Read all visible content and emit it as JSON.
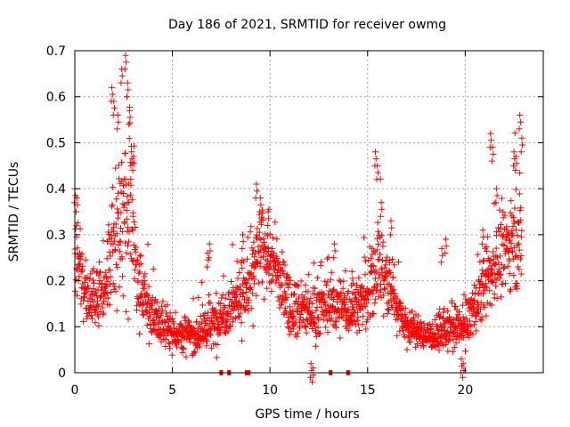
{
  "chart_data": {
    "type": "scatter",
    "title": "Day 186 of 2021, SRMTID for receiver owmg",
    "xlabel": "GPS time / hours",
    "ylabel": "SRMTID / TECUs",
    "xlim": [
      0,
      24
    ],
    "ylim": [
      0,
      0.7
    ],
    "x_ticks": [
      0,
      5,
      10,
      15,
      20
    ],
    "y_ticks": [
      0,
      0.1,
      0.2,
      0.3,
      0.4,
      0.5,
      0.6,
      0.7
    ],
    "x_tick_labels": [
      "0",
      "5",
      "10",
      "15",
      "20"
    ],
    "y_tick_labels": [
      "0",
      "0.1",
      "0.2",
      "0.3",
      "0.4",
      "0.5",
      "0.6",
      "0.7"
    ],
    "grid": true,
    "marker": "+",
    "color": "#ff0000",
    "envelope": [
      [
        0.0,
        0.24,
        0.12
      ],
      [
        0.3,
        0.22,
        0.09
      ],
      [
        0.6,
        0.16,
        0.06
      ],
      [
        1.0,
        0.15,
        0.06
      ],
      [
        1.5,
        0.2,
        0.09
      ],
      [
        2.0,
        0.3,
        0.14
      ],
      [
        2.5,
        0.35,
        0.18
      ],
      [
        2.8,
        0.38,
        0.2
      ],
      [
        3.2,
        0.2,
        0.08
      ],
      [
        4.0,
        0.12,
        0.05
      ],
      [
        5.0,
        0.09,
        0.04
      ],
      [
        6.0,
        0.08,
        0.04
      ],
      [
        7.0,
        0.1,
        0.05
      ],
      [
        8.0,
        0.15,
        0.06
      ],
      [
        9.0,
        0.19,
        0.08
      ],
      [
        9.5,
        0.27,
        0.09
      ],
      [
        10.0,
        0.25,
        0.08
      ],
      [
        11.0,
        0.15,
        0.06
      ],
      [
        12.0,
        0.13,
        0.06
      ],
      [
        13.0,
        0.15,
        0.06
      ],
      [
        14.0,
        0.14,
        0.06
      ],
      [
        15.0,
        0.16,
        0.07
      ],
      [
        15.5,
        0.24,
        0.11
      ],
      [
        16.0,
        0.2,
        0.08
      ],
      [
        17.0,
        0.1,
        0.04
      ],
      [
        18.0,
        0.08,
        0.03
      ],
      [
        19.0,
        0.09,
        0.04
      ],
      [
        20.0,
        0.1,
        0.05
      ],
      [
        21.0,
        0.19,
        0.07
      ],
      [
        22.0,
        0.27,
        0.09
      ],
      [
        22.8,
        0.3,
        0.1
      ]
    ],
    "spikes": [
      [
        0.0,
        0.4
      ],
      [
        0.1,
        0.38
      ],
      [
        1.9,
        0.62
      ],
      [
        2.0,
        0.59
      ],
      [
        2.2,
        0.56
      ],
      [
        2.4,
        0.66
      ],
      [
        2.6,
        0.69
      ],
      [
        2.7,
        0.63
      ],
      [
        2.8,
        0.57
      ],
      [
        2.9,
        0.48
      ],
      [
        3.0,
        0.47
      ],
      [
        9.3,
        0.41
      ],
      [
        9.5,
        0.38
      ],
      [
        9.9,
        0.35
      ],
      [
        15.4,
        0.48
      ],
      [
        15.5,
        0.45
      ],
      [
        15.7,
        0.37
      ],
      [
        21.3,
        0.52
      ],
      [
        21.4,
        0.49
      ],
      [
        21.6,
        0.4
      ],
      [
        22.5,
        0.48
      ],
      [
        22.6,
        0.47
      ],
      [
        22.8,
        0.56
      ],
      [
        22.9,
        0.51
      ],
      [
        12.1,
        0.02
      ],
      [
        12.2,
        0.01
      ],
      [
        19.8,
        0.03
      ],
      [
        19.9,
        0.02
      ],
      [
        6.8,
        0.26
      ],
      [
        6.9,
        0.28
      ],
      [
        8.6,
        0.3
      ],
      [
        13.3,
        0.28
      ],
      [
        14.2,
        0.22
      ],
      [
        16.2,
        0.33
      ],
      [
        18.8,
        0.27
      ],
      [
        19.0,
        0.29
      ],
      [
        20.9,
        0.31
      ]
    ],
    "baseline_markers": [
      7.5,
      7.9,
      8.8,
      8.9,
      13.1,
      14.0
    ]
  }
}
